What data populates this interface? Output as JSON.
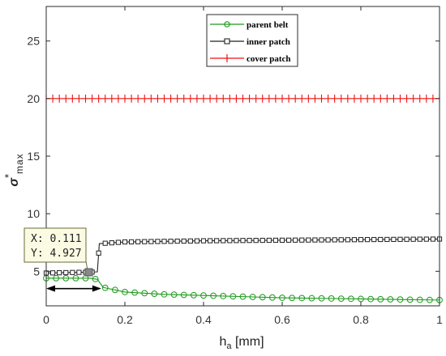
{
  "chart_data": {
    "type": "line",
    "xlabel_main": "h",
    "xlabel_sub": "a",
    "xlabel_unit": " [mm]",
    "ylabel_main": "σ",
    "ylabel_sup": "*",
    "ylabel_sub": "max",
    "xlim": [
      0,
      1
    ],
    "ylim": [
      2,
      28
    ],
    "xticks": [
      0,
      0.2,
      0.4,
      0.6,
      0.8,
      1
    ],
    "xtick_labels": [
      "0",
      "0.2",
      "0.4",
      "0.6",
      "0.8",
      "1"
    ],
    "yticks": [
      5,
      10,
      15,
      20,
      25
    ],
    "ytick_labels": [
      "5",
      "10",
      "15",
      "20",
      "25"
    ],
    "grid": false,
    "legend_position": "top-center",
    "series": [
      {
        "name": "parent belt",
        "color": "#1a9a1a",
        "marker": "circle",
        "points": [
          [
            0,
            4.4
          ],
          [
            0.111,
            4.4
          ],
          [
            0.13,
            4.3
          ],
          [
            0.145,
            3.6
          ],
          [
            0.2,
            3.2
          ],
          [
            0.3,
            3.0
          ],
          [
            0.4,
            2.9
          ],
          [
            0.5,
            2.8
          ],
          [
            0.6,
            2.7
          ],
          [
            0.7,
            2.65
          ],
          [
            0.8,
            2.6
          ],
          [
            0.9,
            2.55
          ],
          [
            1.0,
            2.5
          ]
        ]
      },
      {
        "name": "inner patch",
        "color": "#222222",
        "marker": "square",
        "points": [
          [
            0,
            4.85
          ],
          [
            0.111,
            4.927
          ],
          [
            0.13,
            4.95
          ],
          [
            0.135,
            7.4
          ],
          [
            0.2,
            7.55
          ],
          [
            0.4,
            7.65
          ],
          [
            0.6,
            7.7
          ],
          [
            0.8,
            7.75
          ],
          [
            1.0,
            7.8
          ]
        ]
      },
      {
        "name": "cover patch",
        "color": "#ee1111",
        "marker": "plus",
        "points": [
          [
            0,
            20
          ],
          [
            1.0,
            20
          ]
        ]
      }
    ],
    "datatip": {
      "x_label": "X: 0.111",
      "y_label": "Y: 4.927",
      "x": 0.111,
      "y": 4.927
    },
    "annotation": {
      "type": "double-arrow",
      "x_from": 0.0,
      "x_to": 0.14,
      "y": 3.5
    }
  }
}
